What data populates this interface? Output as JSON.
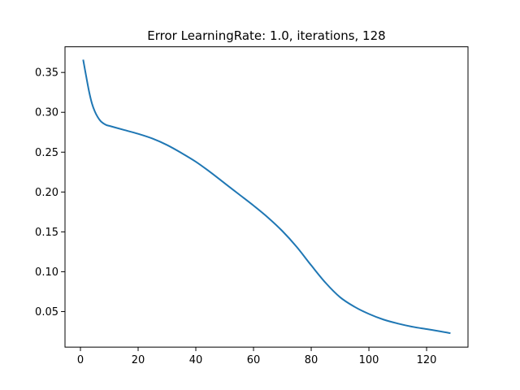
{
  "chart_data": {
    "type": "line",
    "title": "Error LearningRate: 1.0, iterations, 128",
    "xlabel": "",
    "ylabel": "",
    "xlim": [
      -5.35,
      134.35
    ],
    "ylim": [
      0.0054,
      0.3822
    ],
    "xticks": [
      0,
      20,
      40,
      60,
      80,
      100,
      120
    ],
    "xtick_labels": [
      "0",
      "20",
      "40",
      "60",
      "80",
      "100",
      "120"
    ],
    "yticks": [
      0.05,
      0.1,
      0.15,
      0.2,
      0.25,
      0.3,
      0.35
    ],
    "ytick_labels": [
      "0.05",
      "0.10",
      "0.15",
      "0.20",
      "0.25",
      "0.30",
      "0.35"
    ],
    "grid": false,
    "line_color": "#1f77b4",
    "series": [
      {
        "x": [
          1,
          2,
          3,
          4,
          5,
          6,
          7,
          8,
          9,
          10,
          12,
          15,
          20,
          25,
          30,
          35,
          40,
          45,
          50,
          55,
          60,
          65,
          70,
          75,
          80,
          85,
          90,
          95,
          100,
          105,
          110,
          115,
          120,
          125,
          128
        ],
        "values": [
          0.365,
          0.345,
          0.326,
          0.311,
          0.301,
          0.294,
          0.289,
          0.286,
          0.284,
          0.283,
          0.281,
          0.278,
          0.273,
          0.267,
          0.259,
          0.249,
          0.238,
          0.225,
          0.211,
          0.197,
          0.183,
          0.168,
          0.151,
          0.131,
          0.108,
          0.086,
          0.068,
          0.056,
          0.047,
          0.04,
          0.035,
          0.031,
          0.028,
          0.025,
          0.023
        ]
      }
    ]
  }
}
